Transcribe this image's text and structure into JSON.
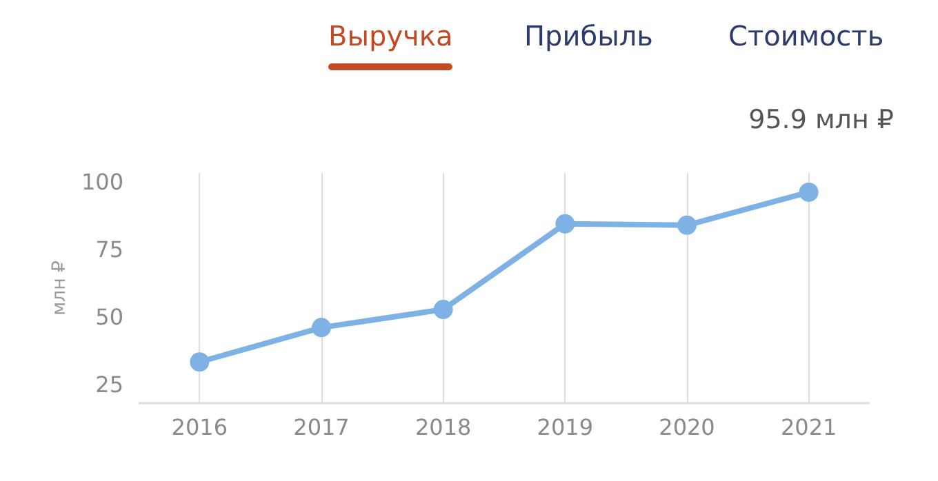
{
  "chart_data": {
    "type": "line",
    "ylabel": "млн ₽",
    "annotations": [
      "Выручка",
      "Прибыль",
      "Стоимость",
      "95.9 млн ₽"
    ],
    "x": [
      2016,
      2017,
      2018,
      2019,
      2020,
      2021
    ],
    "series": [
      {
        "color": "#7eb2e4",
        "values": [
          33.2,
          45.9,
          52.6,
          84.2,
          83.7,
          95.9
        ]
      }
    ],
    "xlim": [
      2015.5,
      2021.5
    ],
    "xticks": [
      2016,
      2017,
      2018,
      2019,
      2020,
      2021
    ],
    "ylim": [
      18,
      103
    ],
    "yticks": [
      25,
      50,
      75,
      100
    ],
    "grid": "x",
    "marker": "circle",
    "line_style": "solid"
  }
}
